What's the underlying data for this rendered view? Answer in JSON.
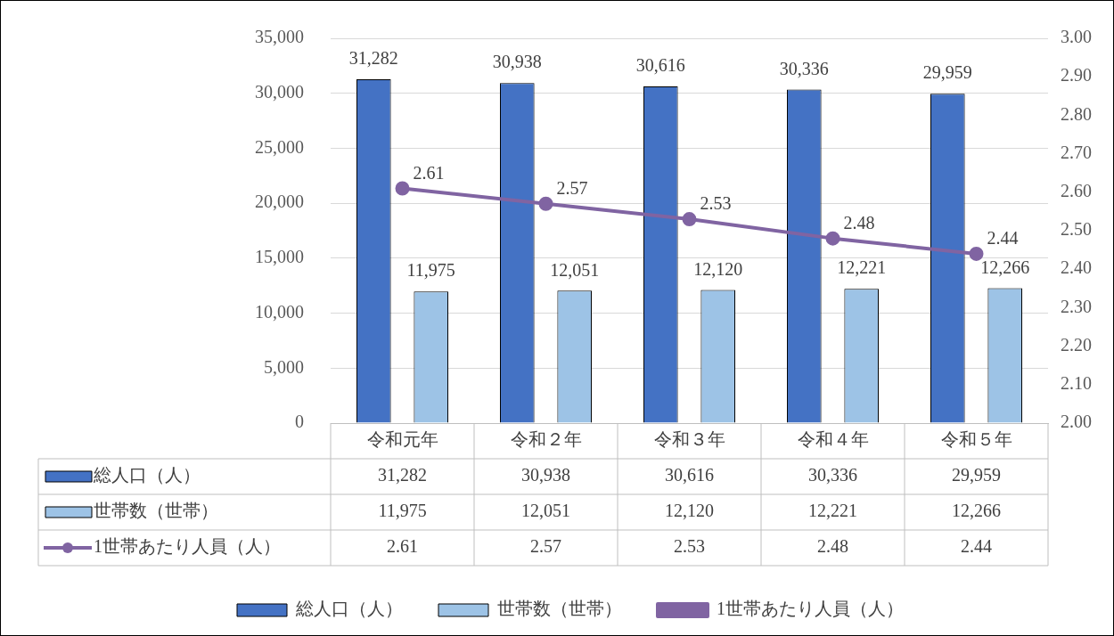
{
  "chart_data": {
    "type": "bar",
    "categories": [
      "令和元年",
      "令和２年",
      "令和３年",
      "令和４年",
      "令和５年"
    ],
    "series": [
      {
        "name": "総人口（人）",
        "color": "#4472c4",
        "values": [
          31282,
          30938,
          30616,
          30336,
          29959
        ],
        "value_labels": [
          "31,282",
          "30,938",
          "30,616",
          "30,336",
          "29,959"
        ]
      },
      {
        "name": "世帯数（世帯）",
        "color": "#9dc3e6",
        "values": [
          11975,
          12051,
          12120,
          12221,
          12266
        ],
        "value_labels": [
          "11,975",
          "12,051",
          "12,120",
          "12,221",
          "12,266"
        ]
      },
      {
        "name": "1世帯あたり人員（人）",
        "type": "line",
        "axis": "y2",
        "color": "#8064a2",
        "values": [
          2.61,
          2.57,
          2.53,
          2.48,
          2.44
        ],
        "value_labels": [
          "2.61",
          "2.57",
          "2.53",
          "2.48",
          "2.44"
        ]
      }
    ],
    "ylim": [
      0,
      35000
    ],
    "yticks": [
      0,
      {
        "value": 5000,
        "label": "5,000"
      },
      {
        "value": 10000,
        "label": "10,000"
      },
      {
        "value": 15000,
        "label": "15,000"
      },
      {
        "value": 20000,
        "label": "20,000"
      },
      {
        "value": 25000,
        "label": "25,000"
      },
      {
        "value": 30000,
        "label": "30,000"
      },
      {
        "value": 35000,
        "label": "35,000"
      }
    ],
    "y2lim": [
      2.0,
      3.0
    ],
    "y2ticks": [
      {
        "value": 2.0,
        "label": "2.00"
      },
      {
        "value": 2.1,
        "label": "2.10"
      },
      {
        "value": 2.2,
        "label": "2.20"
      },
      {
        "value": 2.3,
        "label": "2.30"
      },
      {
        "value": 2.4,
        "label": "2.40"
      },
      {
        "value": 2.5,
        "label": "2.50"
      },
      {
        "value": 2.6,
        "label": "2.60"
      },
      {
        "value": 2.7,
        "label": "2.70"
      },
      {
        "value": 2.8,
        "label": "2.80"
      },
      {
        "value": 2.9,
        "label": "2.90"
      },
      {
        "value": 3.0,
        "label": "3.00"
      }
    ],
    "grid": "y",
    "legend": "bottom",
    "marker": "circle",
    "line_style": "solid"
  }
}
